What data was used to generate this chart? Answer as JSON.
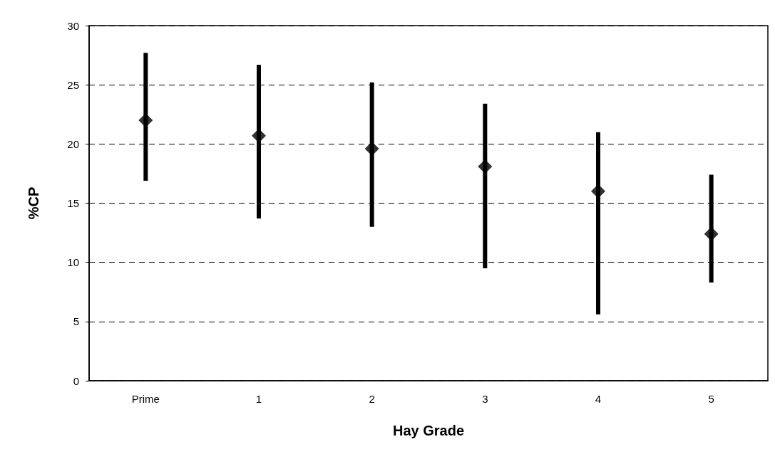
{
  "chart_data": {
    "type": "scatter",
    "xlabel": "Hay Grade",
    "ylabel": "%CP",
    "categories": [
      "Prime",
      "1",
      "2",
      "3",
      "4",
      "5"
    ],
    "series": [
      {
        "color": "#000000",
        "values": [
          22,
          20.7,
          19.6,
          18.1,
          16,
          12.4
        ],
        "errors": [
          [
            16.9,
            27.7
          ],
          [
            13.7,
            26.7
          ],
          [
            13,
            25.2
          ],
          [
            9.5,
            23.4
          ],
          [
            5.6,
            21
          ],
          [
            8.3,
            17.4
          ]
        ]
      }
    ],
    "ylim": [
      0,
      30
    ],
    "yticks": [
      0,
      5,
      10,
      15,
      20,
      25,
      30
    ],
    "grid": "y",
    "marker": "diamond"
  }
}
